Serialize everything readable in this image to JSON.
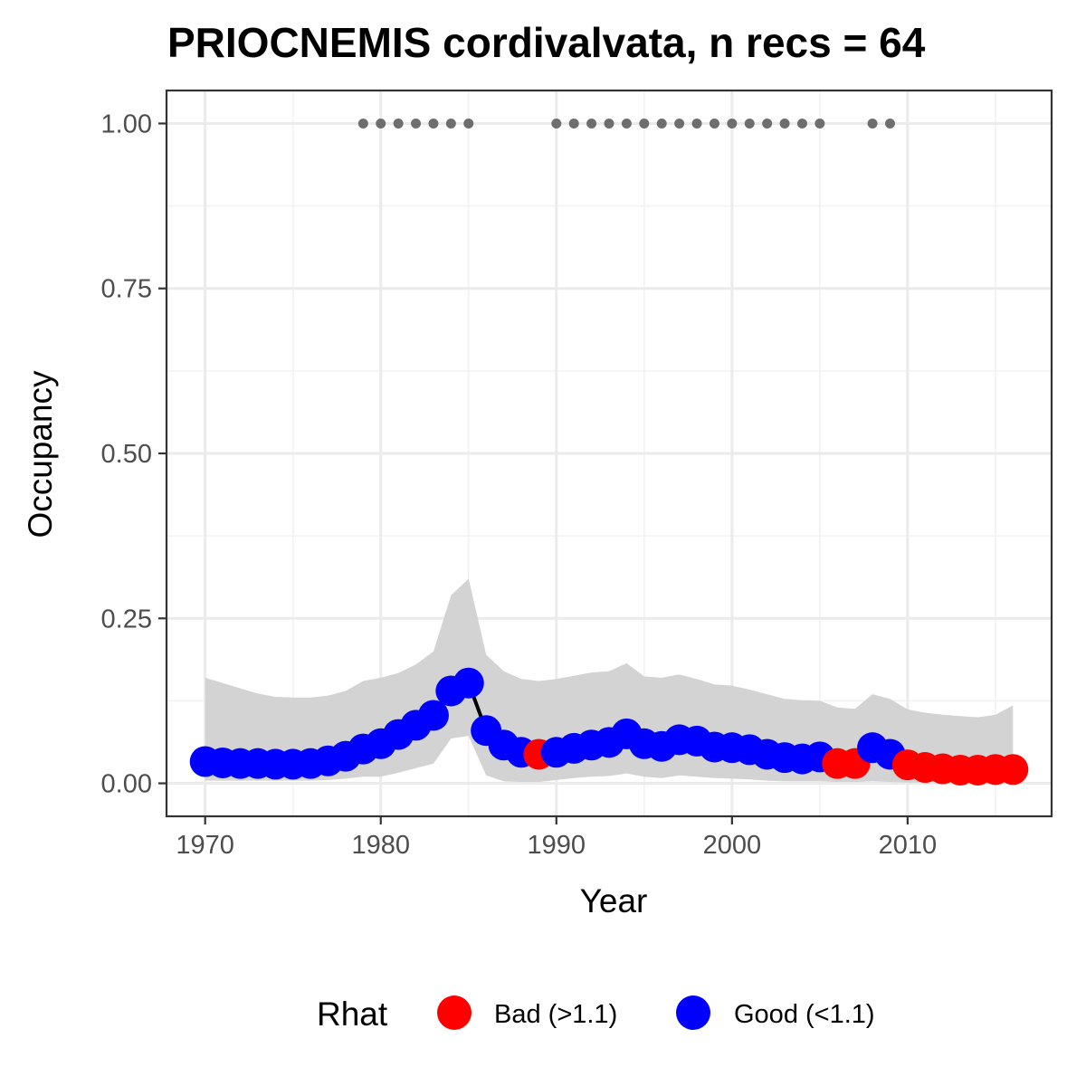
{
  "chart_data": {
    "type": "line",
    "title": "PRIOCNEMIS cordivalvata, n recs = 64",
    "xlabel": "Year",
    "ylabel": "Occupancy",
    "xlim": [
      1967.8,
      2018.2
    ],
    "ylim": [
      -0.05,
      1.05
    ],
    "x_ticks": [
      "1970",
      "1980",
      "1990",
      "2000",
      "2010"
    ],
    "y_ticks": [
      "0.00",
      "0.25",
      "0.50",
      "0.75",
      "1.00"
    ],
    "grid": true,
    "legend": {
      "title": "Rhat",
      "position": "bottom",
      "entries": [
        {
          "label": "Bad (>1.1)",
          "color": "#ff0000"
        },
        {
          "label": "Good (<1.1)",
          "color": "#0000ff"
        }
      ]
    },
    "colors": {
      "bad": "#ff0000",
      "good": "#0000ff",
      "ribbon": "#d3d3d3",
      "record": "#6e6e6e",
      "line": "#000000"
    },
    "series": [
      {
        "years": [
          1970,
          1971,
          1972,
          1973,
          1974,
          1975,
          1976,
          1977,
          1978,
          1979,
          1980,
          1981,
          1982,
          1983,
          1984,
          1985,
          1986,
          1987,
          1988,
          1989,
          1990,
          1991,
          1992,
          1993,
          1994,
          1995,
          1996,
          1997,
          1998,
          1999,
          2000,
          2001,
          2002,
          2003,
          2004,
          2005,
          2006,
          2007,
          2008,
          2009,
          2010,
          2011,
          2012,
          2013,
          2014,
          2015,
          2016
        ],
        "mean": [
          0.033,
          0.031,
          0.03,
          0.03,
          0.029,
          0.029,
          0.03,
          0.034,
          0.041,
          0.052,
          0.06,
          0.074,
          0.088,
          0.103,
          0.14,
          0.152,
          0.08,
          0.058,
          0.047,
          0.044,
          0.047,
          0.053,
          0.058,
          0.062,
          0.075,
          0.06,
          0.056,
          0.066,
          0.064,
          0.055,
          0.054,
          0.051,
          0.044,
          0.039,
          0.037,
          0.04,
          0.03,
          0.03,
          0.054,
          0.044,
          0.028,
          0.024,
          0.022,
          0.02,
          0.02,
          0.021,
          0.021
        ],
        "upper": [
          0.16,
          0.152,
          0.144,
          0.136,
          0.131,
          0.13,
          0.13,
          0.133,
          0.14,
          0.155,
          0.16,
          0.167,
          0.18,
          0.2,
          0.285,
          0.31,
          0.195,
          0.17,
          0.158,
          0.155,
          0.158,
          0.163,
          0.168,
          0.17,
          0.182,
          0.162,
          0.16,
          0.165,
          0.158,
          0.15,
          0.148,
          0.142,
          0.135,
          0.128,
          0.126,
          0.125,
          0.115,
          0.113,
          0.135,
          0.128,
          0.112,
          0.107,
          0.104,
          0.102,
          0.1,
          0.104,
          0.118
        ],
        "lower": [
          0.004,
          0.004,
          0.004,
          0.004,
          0.004,
          0.004,
          0.004,
          0.005,
          0.007,
          0.01,
          0.01,
          0.016,
          0.023,
          0.03,
          0.068,
          0.072,
          0.012,
          0.003,
          0.002,
          0.002,
          0.005,
          0.008,
          0.01,
          0.011,
          0.015,
          0.01,
          0.008,
          0.012,
          0.01,
          0.008,
          0.007,
          0.006,
          0.004,
          0.003,
          0.003,
          0.003,
          0.002,
          0.002,
          0.003,
          0.002,
          0.001,
          0.001,
          0.001,
          0.001,
          0.001,
          0.001,
          0.001
        ],
        "rhat": [
          "good",
          "good",
          "good",
          "good",
          "good",
          "good",
          "good",
          "good",
          "good",
          "good",
          "good",
          "good",
          "good",
          "good",
          "good",
          "good",
          "good",
          "good",
          "good",
          "bad",
          "good",
          "good",
          "good",
          "good",
          "good",
          "good",
          "good",
          "good",
          "good",
          "good",
          "good",
          "good",
          "good",
          "good",
          "good",
          "good",
          "bad",
          "bad",
          "good",
          "good",
          "bad",
          "bad",
          "bad",
          "bad",
          "bad",
          "bad",
          "bad"
        ]
      }
    ],
    "record_years": [
      1979,
      1980,
      1981,
      1982,
      1983,
      1984,
      1985,
      1990,
      1991,
      1992,
      1993,
      1994,
      1995,
      1996,
      1997,
      1998,
      1999,
      2000,
      2001,
      2002,
      2003,
      2004,
      2005,
      2008,
      2009
    ],
    "record_value": 1.0
  }
}
